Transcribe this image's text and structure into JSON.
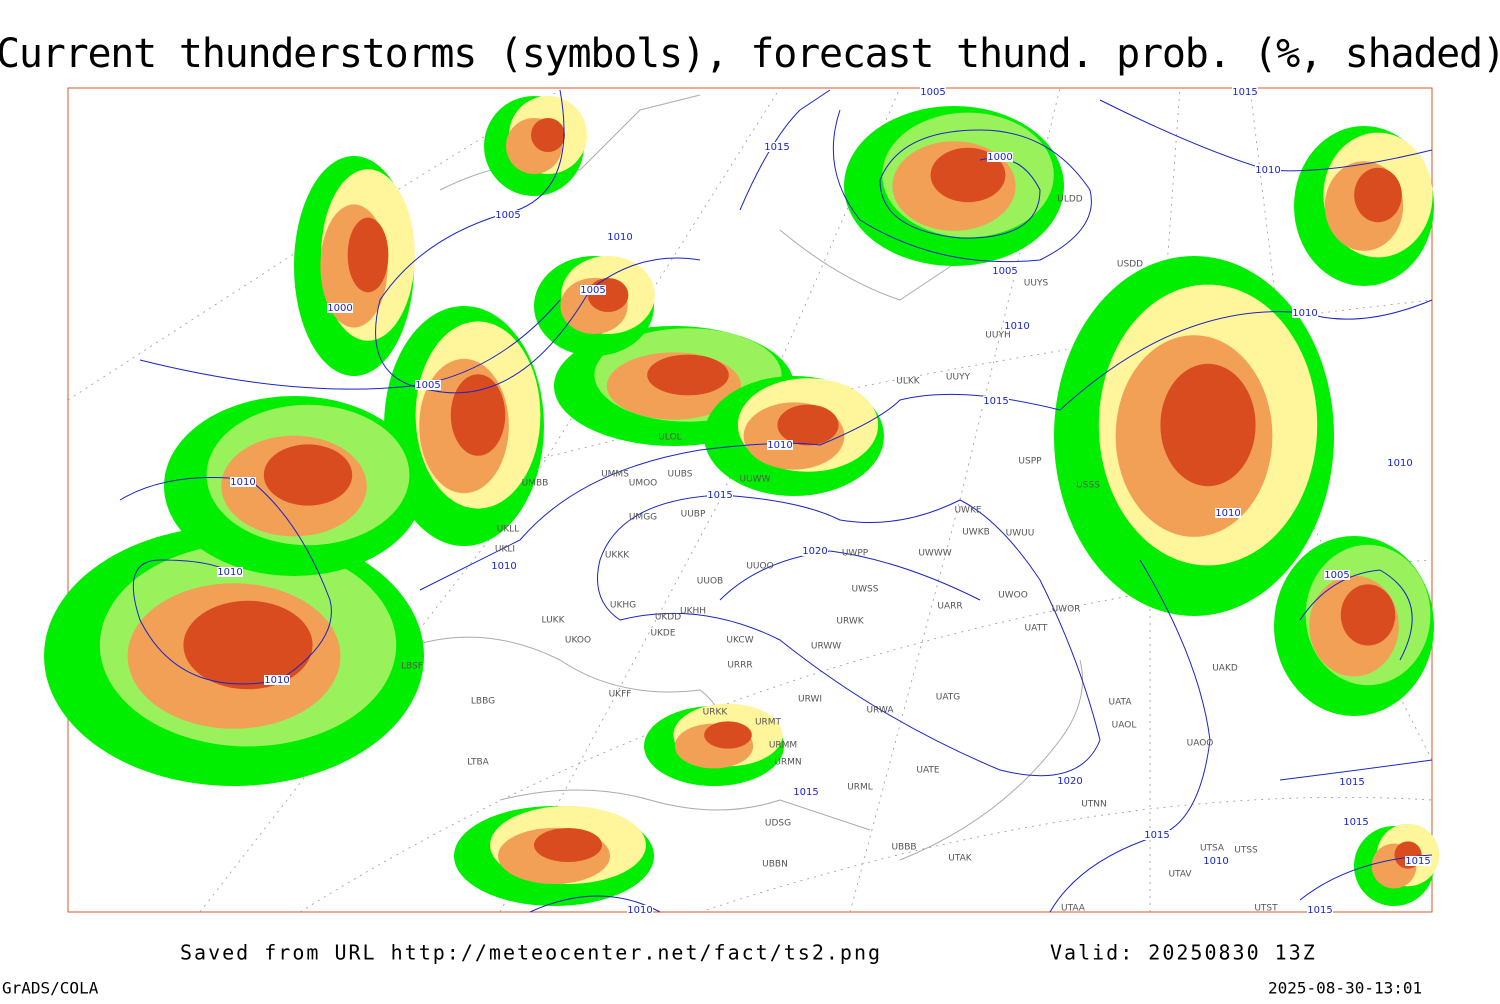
{
  "title": "Current thunderstorms (symbols), forecast thund. prob. (%, shaded)",
  "isobar_labels": [
    1005,
    1015,
    1015,
    1000,
    1010,
    1005,
    1010,
    1005,
    1005,
    1000,
    1010,
    1010,
    1005,
    1015,
    1010,
    1010,
    1010,
    1015,
    1010,
    1020,
    1010,
    1010,
    1005,
    1010,
    1020,
    1015,
    1015,
    1015,
    1015,
    1010,
    1015,
    1010,
    1015
  ],
  "station_labels": [
    "ULDD",
    "USDD",
    "UUYS",
    "UUYH",
    "ULKK",
    "UUYY",
    "ULOL",
    "UMMS",
    "UMOO",
    "UUBS",
    "UMBB",
    "UUWW",
    "USSS",
    "USPP",
    "UMGG",
    "UUBP",
    "UWKE",
    "UWKB",
    "UWUU",
    "UKLL",
    "UKLI",
    "UWPP",
    "UWWW",
    "UKKK",
    "UUOO",
    "UUOB",
    "UWSS",
    "UWOO",
    "UWOR",
    "UKHG",
    "UKDD",
    "UKHH",
    "UARR",
    "LUKK",
    "UKOO",
    "UKDE",
    "UKCW",
    "URWK",
    "UATT",
    "URWW",
    "LBSF",
    "URRR",
    "UAKD",
    "LBBG",
    "UKFF",
    "URWI",
    "UATG",
    "UATA",
    "URKK",
    "URMT",
    "URWA",
    "UAOL",
    "UAOO",
    "URMM",
    "UATE",
    "URMN",
    "LTBA",
    "UDSG",
    "URML",
    "UTNN",
    "UBBB",
    "UTAK",
    "UBBN",
    "UTSA",
    "UTSS",
    "UTAV",
    "UTAA",
    "UTST"
  ],
  "footer": {
    "saved": "Saved from URL http://meteocenter.net/fact/ts2.png",
    "valid": "Valid: 20250830 13Z",
    "left": "GrADS/COLA",
    "right": "2025-08-30-13:01"
  }
}
